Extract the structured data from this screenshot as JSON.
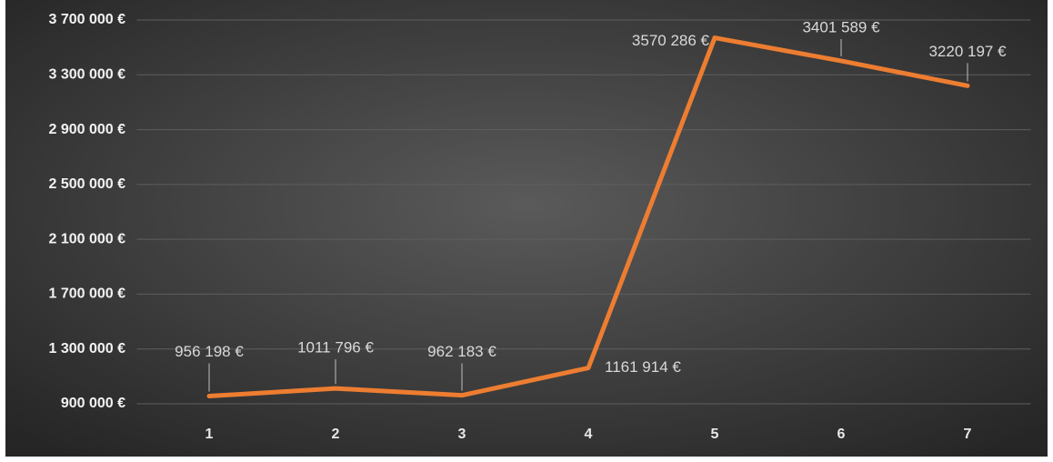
{
  "chart_data": {
    "type": "line",
    "categories": [
      "1",
      "2",
      "3",
      "4",
      "5",
      "6",
      "7"
    ],
    "series": [
      {
        "color": "#ed7d31",
        "values": [
          956198,
          1011796,
          962183,
          1161914,
          3570286,
          3401589,
          3220197
        ],
        "value_labels": [
          "956 198 €",
          "1011 796 €",
          "962 183 €",
          "1161 914 €",
          "3570 286 €",
          "3401 589 €",
          "3220 197 €"
        ]
      }
    ],
    "ylim": [
      900000,
      3700000
    ],
    "yticks": [
      {
        "value": 900000,
        "label": "900 000 €"
      },
      {
        "value": 1300000,
        "label": "1 300 000 €"
      },
      {
        "value": 1700000,
        "label": "1 700 000 €"
      },
      {
        "value": 2100000,
        "label": "2 100 000 €"
      },
      {
        "value": 2500000,
        "label": "2 500 000 €"
      },
      {
        "value": 2900000,
        "label": "2 900 000 €"
      },
      {
        "value": 3300000,
        "label": "3 300 000 €"
      },
      {
        "value": 3700000,
        "label": "3 700 000 €"
      }
    ],
    "grid": true
  }
}
